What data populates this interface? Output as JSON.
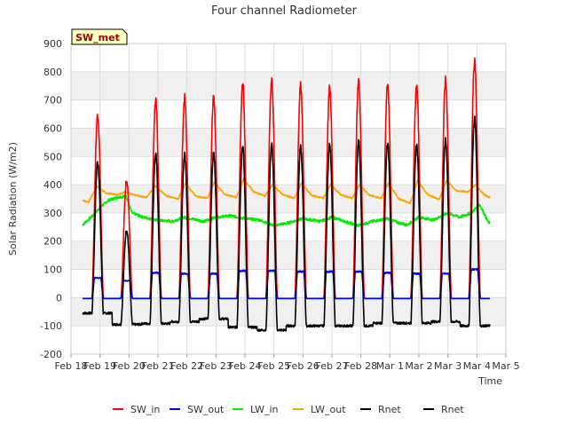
{
  "chart_data": {
    "type": "line",
    "title": "Four channel Radiometer",
    "xlabel": "Time",
    "ylabel": "Solar Radiation (W/m2)",
    "badge": "SW_met",
    "ylim": [
      -200,
      900
    ],
    "yticks": [
      -200,
      -100,
      0,
      100,
      200,
      300,
      400,
      500,
      600,
      700,
      800,
      900
    ],
    "xlim": [
      0,
      15
    ],
    "xticks": [
      {
        "pos": 0,
        "label": "Feb 18"
      },
      {
        "pos": 1,
        "label": "Feb 19"
      },
      {
        "pos": 2,
        "label": "Feb 20"
      },
      {
        "pos": 3,
        "label": "Feb 21"
      },
      {
        "pos": 4,
        "label": "Feb 22"
      },
      {
        "pos": 5,
        "label": "Feb 23"
      },
      {
        "pos": 6,
        "label": "Feb 24"
      },
      {
        "pos": 7,
        "label": "Feb 25"
      },
      {
        "pos": 8,
        "label": "Feb 26"
      },
      {
        "pos": 9,
        "label": "Feb 27"
      },
      {
        "pos": 10,
        "label": "Feb 28"
      },
      {
        "pos": 11,
        "label": "Mar 1"
      },
      {
        "pos": 12,
        "label": "Mar 2"
      },
      {
        "pos": 13,
        "label": "Mar 3"
      },
      {
        "pos": 14,
        "label": "Mar 4"
      },
      {
        "pos": 15,
        "label": "Mar 5"
      }
    ],
    "grid": true,
    "legend_position": "bottom",
    "days": [
      {
        "center": 0.92,
        "sw_in": 650,
        "sw_out": 70,
        "rnet": 480,
        "night": -55
      },
      {
        "center": 1.92,
        "sw_in": 420,
        "sw_out": 60,
        "rnet": 240,
        "night": -95
      },
      {
        "center": 2.92,
        "sw_in": 700,
        "sw_out": 88,
        "rnet": 505,
        "night": -92
      },
      {
        "center": 3.92,
        "sw_in": 710,
        "sw_out": 85,
        "rnet": 505,
        "night": -85
      },
      {
        "center": 4.92,
        "sw_in": 710,
        "sw_out": 85,
        "rnet": 510,
        "night": -75
      },
      {
        "center": 5.92,
        "sw_in": 760,
        "sw_out": 95,
        "rnet": 535,
        "night": -105
      },
      {
        "center": 6.92,
        "sw_in": 770,
        "sw_out": 95,
        "rnet": 540,
        "night": -115
      },
      {
        "center": 7.92,
        "sw_in": 750,
        "sw_out": 92,
        "rnet": 530,
        "night": -100
      },
      {
        "center": 8.92,
        "sw_in": 745,
        "sw_out": 92,
        "rnet": 540,
        "night": -100
      },
      {
        "center": 9.92,
        "sw_in": 765,
        "sw_out": 92,
        "rnet": 550,
        "night": -100
      },
      {
        "center": 10.92,
        "sw_in": 755,
        "sw_out": 88,
        "rnet": 545,
        "night": -90
      },
      {
        "center": 11.92,
        "sw_in": 750,
        "sw_out": 85,
        "rnet": 540,
        "night": -90
      },
      {
        "center": 12.92,
        "sw_in": 770,
        "sw_out": 85,
        "rnet": 555,
        "night": -85
      },
      {
        "center": 13.92,
        "sw_in": 840,
        "sw_out": 100,
        "rnet": 635,
        "night": -100
      }
    ],
    "lw_in_levels": [
      {
        "x": 0.4,
        "y": 258
      },
      {
        "x": 0.75,
        "y": 290
      },
      {
        "x": 1.0,
        "y": 320
      },
      {
        "x": 1.3,
        "y": 345
      },
      {
        "x": 1.6,
        "y": 355
      },
      {
        "x": 1.9,
        "y": 360
      },
      {
        "x": 2.1,
        "y": 300
      },
      {
        "x": 2.5,
        "y": 285
      },
      {
        "x": 2.9,
        "y": 275
      },
      {
        "x": 3.5,
        "y": 270
      },
      {
        "x": 3.9,
        "y": 285
      },
      {
        "x": 4.6,
        "y": 270
      },
      {
        "x": 5.0,
        "y": 285
      },
      {
        "x": 5.5,
        "y": 290
      },
      {
        "x": 6.0,
        "y": 280
      },
      {
        "x": 6.5,
        "y": 275
      },
      {
        "x": 7.0,
        "y": 255
      },
      {
        "x": 7.5,
        "y": 265
      },
      {
        "x": 8.0,
        "y": 280
      },
      {
        "x": 8.6,
        "y": 270
      },
      {
        "x": 9.0,
        "y": 285
      },
      {
        "x": 9.5,
        "y": 268
      },
      {
        "x": 9.9,
        "y": 255
      },
      {
        "x": 10.4,
        "y": 270
      },
      {
        "x": 10.9,
        "y": 280
      },
      {
        "x": 11.3,
        "y": 265
      },
      {
        "x": 11.6,
        "y": 258
      },
      {
        "x": 12.0,
        "y": 285
      },
      {
        "x": 12.5,
        "y": 275
      },
      {
        "x": 13.0,
        "y": 300
      },
      {
        "x": 13.4,
        "y": 285
      },
      {
        "x": 13.8,
        "y": 300
      },
      {
        "x": 14.1,
        "y": 330
      },
      {
        "x": 14.4,
        "y": 265
      }
    ],
    "lw_out_levels": [
      {
        "x": 0.4,
        "y": 345
      },
      {
        "x": 0.6,
        "y": 338
      },
      {
        "x": 0.9,
        "y": 395
      },
      {
        "x": 1.2,
        "y": 370
      },
      {
        "x": 1.6,
        "y": 365
      },
      {
        "x": 1.9,
        "y": 375
      },
      {
        "x": 2.1,
        "y": 365
      },
      {
        "x": 2.6,
        "y": 355
      },
      {
        "x": 2.9,
        "y": 395
      },
      {
        "x": 3.3,
        "y": 360
      },
      {
        "x": 3.7,
        "y": 350
      },
      {
        "x": 3.95,
        "y": 405
      },
      {
        "x": 4.3,
        "y": 360
      },
      {
        "x": 4.7,
        "y": 352
      },
      {
        "x": 4.95,
        "y": 410
      },
      {
        "x": 5.3,
        "y": 365
      },
      {
        "x": 5.7,
        "y": 355
      },
      {
        "x": 5.95,
        "y": 420
      },
      {
        "x": 6.3,
        "y": 375
      },
      {
        "x": 6.7,
        "y": 360
      },
      {
        "x": 6.95,
        "y": 400
      },
      {
        "x": 7.3,
        "y": 365
      },
      {
        "x": 7.7,
        "y": 352
      },
      {
        "x": 7.95,
        "y": 405
      },
      {
        "x": 8.3,
        "y": 362
      },
      {
        "x": 8.7,
        "y": 352
      },
      {
        "x": 8.95,
        "y": 400
      },
      {
        "x": 9.3,
        "y": 365
      },
      {
        "x": 9.7,
        "y": 352
      },
      {
        "x": 9.95,
        "y": 400
      },
      {
        "x": 10.3,
        "y": 362
      },
      {
        "x": 10.7,
        "y": 352
      },
      {
        "x": 10.95,
        "y": 405
      },
      {
        "x": 11.3,
        "y": 350
      },
      {
        "x": 11.7,
        "y": 335
      },
      {
        "x": 11.95,
        "y": 415
      },
      {
        "x": 12.3,
        "y": 365
      },
      {
        "x": 12.7,
        "y": 348
      },
      {
        "x": 12.95,
        "y": 415
      },
      {
        "x": 13.3,
        "y": 378
      },
      {
        "x": 13.7,
        "y": 375
      },
      {
        "x": 13.95,
        "y": 400
      },
      {
        "x": 14.2,
        "y": 370
      },
      {
        "x": 14.4,
        "y": 355
      }
    ],
    "series": [
      {
        "name": "SW_in",
        "color": "#ff0000"
      },
      {
        "name": "SW_out",
        "color": "#0000ff"
      },
      {
        "name": "LW_in",
        "color": "#00ee00"
      },
      {
        "name": "LW_out",
        "color": "#ffa500"
      },
      {
        "name": "Rnet",
        "color": "#000000"
      },
      {
        "name": "Rnet",
        "color": "#000000"
      }
    ]
  }
}
